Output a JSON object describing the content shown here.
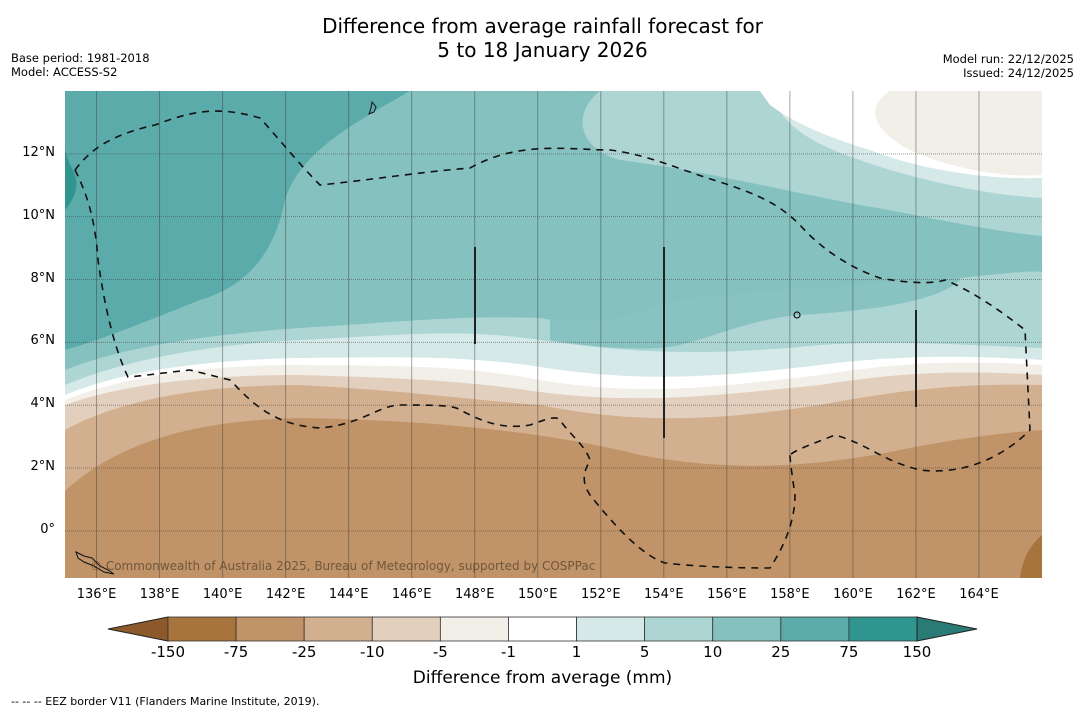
{
  "title_line1": "Difference from average rainfall forecast for",
  "title_line2": "5 to 18 January 2026",
  "meta_left": [
    "Base period: 1981-2018",
    "Model: ACCESS-S2"
  ],
  "meta_right": [
    "Model run: 22/12/2025",
    "Issued: 24/12/2025"
  ],
  "map": {
    "lon_range": [
      135,
      166
    ],
    "lat_range": [
      -1.5,
      14
    ],
    "lon_ticks": [
      "136°E",
      "138°E",
      "140°E",
      "142°E",
      "144°E",
      "146°E",
      "148°E",
      "150°E",
      "152°E",
      "154°E",
      "156°E",
      "158°E",
      "160°E",
      "162°E",
      "164°E"
    ],
    "lat_ticks": [
      "12°N",
      "10°N",
      "8°N",
      "6°N",
      "4°N",
      "2°N",
      "0°"
    ],
    "copyright": "© Commonwealth of Australia 2025, Bureau of Meteorology, supported by COSPPac"
  },
  "colorbar": {
    "title": "Difference from average (mm)",
    "ticks": [
      "-150",
      "-75",
      "-25",
      "-10",
      "-5",
      "-1",
      "1",
      "5",
      "10",
      "25",
      "75",
      "150"
    ],
    "colors": [
      "#a8743e",
      "#c09468",
      "#d2b08f",
      "#e2cfbd",
      "#f2eee8",
      "#ffffff",
      "#d5e9e8",
      "#acd5d4",
      "#84c1bf",
      "#5aabaa",
      "#31958f"
    ],
    "extend_low_color": "#8c5a2a",
    "extend_high_color": "#2a7a76"
  },
  "footnote": "--  --  -- EEZ border V11 (Flanders Marine Institute, 2019)."
}
